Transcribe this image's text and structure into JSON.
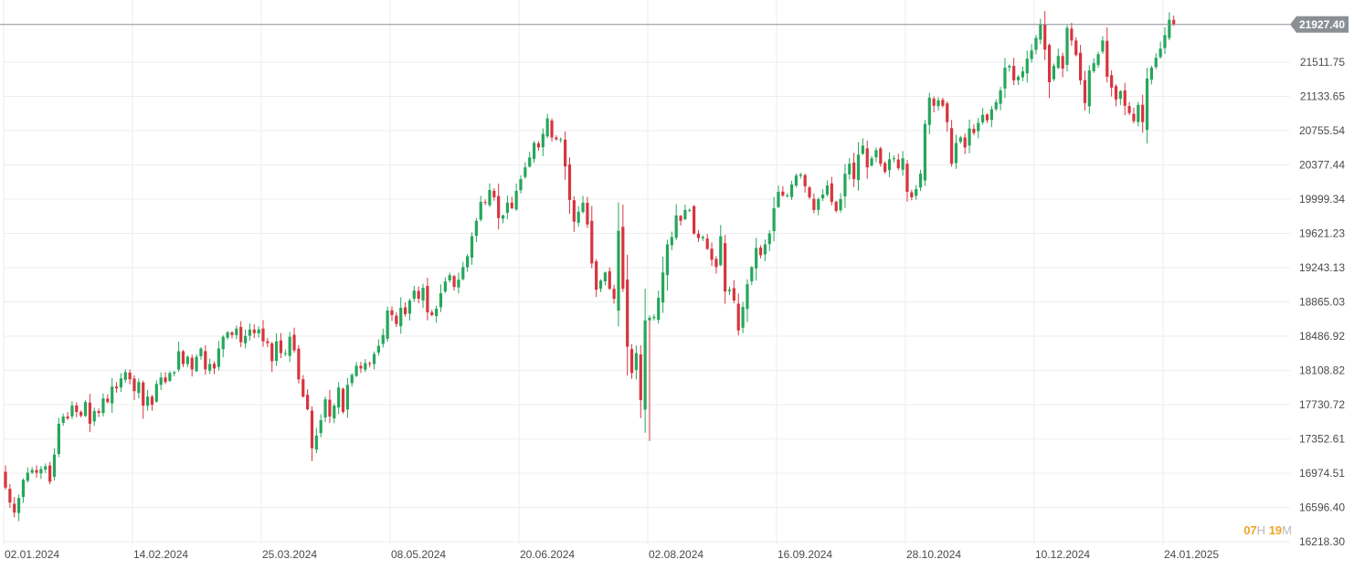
{
  "colors": {
    "up": "#26a65b",
    "down": "#d6353f",
    "grid": "#eeeeee",
    "price_line": "#8a8f96",
    "price_tag_bg": "#8a8f96",
    "axis_text": "#4a4a4a"
  },
  "countdown": {
    "hours": "07",
    "hours_unit": "H",
    "minutes": "19",
    "minutes_unit": "M"
  },
  "chart_data": {
    "type": "candlestick",
    "title": "",
    "xlabel": "",
    "ylabel": "",
    "ylim": [
      16218.3,
      22100
    ],
    "x_tick_labels": [
      "02.01.2024",
      "14.02.2024",
      "25.03.2024",
      "08.05.2024",
      "20.06.2024",
      "02.08.2024",
      "16.09.2024",
      "28.10.2024",
      "10.12.2024",
      "24.01.2025"
    ],
    "y_tick_labels": [
      "21511.75",
      "21133.65",
      "20755.54",
      "20377.44",
      "19999.34",
      "19621.23",
      "19243.13",
      "18865.03",
      "18486.92",
      "18108.82",
      "17730.72",
      "17352.61",
      "16974.51",
      "16596.40",
      "16218.30"
    ],
    "last_price": "21927.40",
    "grid": true,
    "closes": [
      16815,
      16650,
      16540,
      16700,
      16900,
      16980,
      17010,
      16980,
      17020,
      17050,
      16880,
      17180,
      17520,
      17600,
      17580,
      17720,
      17650,
      17610,
      17760,
      17520,
      17660,
      17640,
      17800,
      17760,
      17930,
      17910,
      18020,
      18090,
      18010,
      17880,
      17980,
      17720,
      17820,
      17730,
      17960,
      18030,
      17980,
      18080,
      18090,
      18320,
      18180,
      18260,
      18120,
      18260,
      18350,
      18120,
      18180,
      18130,
      18350,
      18480,
      18530,
      18500,
      18570,
      18420,
      18490,
      18560,
      18520,
      18560,
      18430,
      18410,
      18210,
      18430,
      18300,
      18300,
      18480,
      18330,
      18010,
      17820,
      17680,
      17250,
      17390,
      17560,
      17790,
      17600,
      17720,
      17920,
      17650,
      17950,
      18060,
      18160,
      18130,
      18190,
      18180,
      18290,
      18380,
      18500,
      18770,
      18720,
      18620,
      18800,
      18730,
      18880,
      18990,
      18900,
      19020,
      18750,
      18720,
      18790,
      18960,
      19090,
      19160,
      19030,
      19110,
      19250,
      19370,
      19590,
      19760,
      19970,
      19960,
      20100,
      20020,
      19790,
      19820,
      19960,
      19900,
      20090,
      20220,
      20350,
      20460,
      20620,
      20570,
      20720,
      20890,
      20680,
      20660,
      20660,
      20360,
      19990,
      19750,
      19860,
      19960,
      19720,
      19290,
      19000,
      19100,
      19190,
      19010,
      18900,
      19650,
      19010,
      18370,
      18080,
      18300,
      17780,
      18660,
      18690,
      18700,
      18910,
      19190,
      19500,
      19580,
      19820,
      19760,
      19880,
      19880,
      19620,
      19570,
      19580,
      19450,
      19330,
      19250,
      19590,
      18980,
      19000,
      18880,
      18550,
      18810,
      19060,
      19250,
      19460,
      19380,
      19500,
      19620,
      19900,
      20080,
      20040,
      20040,
      20160,
      20260,
      20270,
      20140,
      20020,
      19880,
      20000,
      20050,
      20150,
      19970,
      19870,
      20000,
      20280,
      20390,
      20220,
      20490,
      20590,
      20350,
      20450,
      20540,
      20390,
      20300,
      20440,
      20450,
      20340,
      20450,
      20080,
      20020,
      20110,
      20280,
      20830,
      21120,
      21030,
      21090,
      21030,
      20850,
      20390,
      20620,
      20680,
      20570,
      20780,
      20730,
      20840,
      20930,
      20870,
      20990,
      21070,
      21200,
      21450,
      21470,
      21310,
      21350,
      21410,
      21550,
      21640,
      21780,
      21930,
      21650,
      21290,
      21470,
      21580,
      21440,
      21890,
      21750,
      21590,
      21310,
      21060,
      21420,
      21500,
      21600,
      21750,
      21350,
      21230,
      21100,
      21190,
      21030,
      20950,
      20860,
      21040,
      20850,
      21330,
      21450,
      21560,
      21660,
      21810,
      21980,
      21927.4
    ]
  }
}
